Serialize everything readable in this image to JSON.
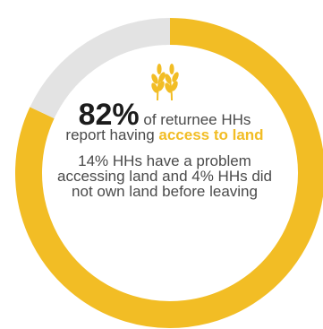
{
  "chart_data": {
    "type": "pie",
    "values": [
      82,
      18
    ],
    "colors": [
      "#f2bd25",
      "#e3e3e3"
    ],
    "annotation": {
      "headline_value": "82%",
      "headline_text_1": "of returnee HHs",
      "headline_text_2": "report having",
      "headline_accent": "access to land",
      "note": "14% HHs have a problem accessing land and 4% HHs did not own land before leaving"
    }
  },
  "icon": "wheat-icon"
}
